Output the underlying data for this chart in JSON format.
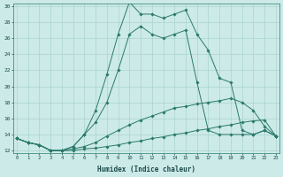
{
  "xlabel": "Humidex (Indice chaleur)",
  "bg_color": "#cceae8",
  "grid_color": "#aad4d0",
  "line_color": "#2a7a6a",
  "x_min": 0,
  "x_max": 23,
  "y_min": 12,
  "y_max": 30,
  "yticks": [
    12,
    14,
    16,
    18,
    20,
    22,
    24,
    26,
    28,
    30
  ],
  "xticks": [
    0,
    1,
    2,
    3,
    4,
    5,
    6,
    7,
    8,
    9,
    10,
    11,
    12,
    13,
    14,
    15,
    16,
    17,
    18,
    19,
    20,
    21,
    22,
    23
  ],
  "series": [
    {
      "x": [
        0,
        1,
        2,
        3,
        4,
        5,
        6,
        7,
        8,
        9,
        10,
        11,
        12,
        13,
        14,
        15,
        16,
        17,
        18,
        19,
        20,
        21,
        22,
        23
      ],
      "y": [
        13.5,
        13.0,
        12.7,
        12.0,
        12.0,
        12.0,
        12.2,
        12.3,
        12.5,
        12.7,
        13.0,
        13.2,
        13.5,
        13.7,
        14.0,
        14.2,
        14.5,
        14.7,
        15.0,
        15.2,
        15.5,
        15.7,
        15.8,
        13.8
      ]
    },
    {
      "x": [
        0,
        1,
        2,
        3,
        4,
        5,
        6,
        7,
        8,
        9,
        10,
        11,
        12,
        13,
        14,
        15,
        16,
        17,
        18,
        19,
        20,
        21,
        22,
        23
      ],
      "y": [
        13.5,
        13.0,
        12.7,
        12.0,
        12.0,
        12.2,
        12.5,
        13.0,
        13.8,
        14.5,
        15.2,
        15.8,
        16.3,
        16.8,
        17.3,
        17.5,
        17.8,
        18.0,
        18.2,
        18.5,
        18.0,
        17.0,
        15.0,
        13.8
      ]
    },
    {
      "x": [
        0,
        1,
        2,
        3,
        4,
        5,
        6,
        7,
        8,
        9,
        10,
        11,
        12,
        13,
        14,
        15,
        16,
        17,
        18,
        19,
        20,
        21,
        22,
        23
      ],
      "y": [
        13.5,
        13.0,
        12.7,
        12.0,
        12.0,
        12.5,
        14.0,
        15.5,
        18.0,
        22.0,
        26.5,
        27.5,
        26.5,
        26.0,
        26.5,
        27.0,
        20.5,
        14.5,
        14.0,
        14.0,
        14.0,
        14.0,
        14.5,
        13.8
      ]
    },
    {
      "x": [
        0,
        1,
        2,
        3,
        4,
        5,
        6,
        7,
        8,
        9,
        10,
        11,
        12,
        13,
        14,
        15,
        16,
        17,
        18,
        19,
        20,
        21,
        22,
        23
      ],
      "y": [
        13.5,
        13.0,
        12.7,
        12.0,
        12.0,
        12.5,
        14.0,
        17.0,
        21.5,
        26.5,
        30.5,
        29.0,
        29.0,
        28.5,
        29.0,
        29.5,
        26.5,
        24.5,
        21.0,
        20.5,
        14.5,
        14.0,
        14.5,
        13.8
      ]
    }
  ]
}
